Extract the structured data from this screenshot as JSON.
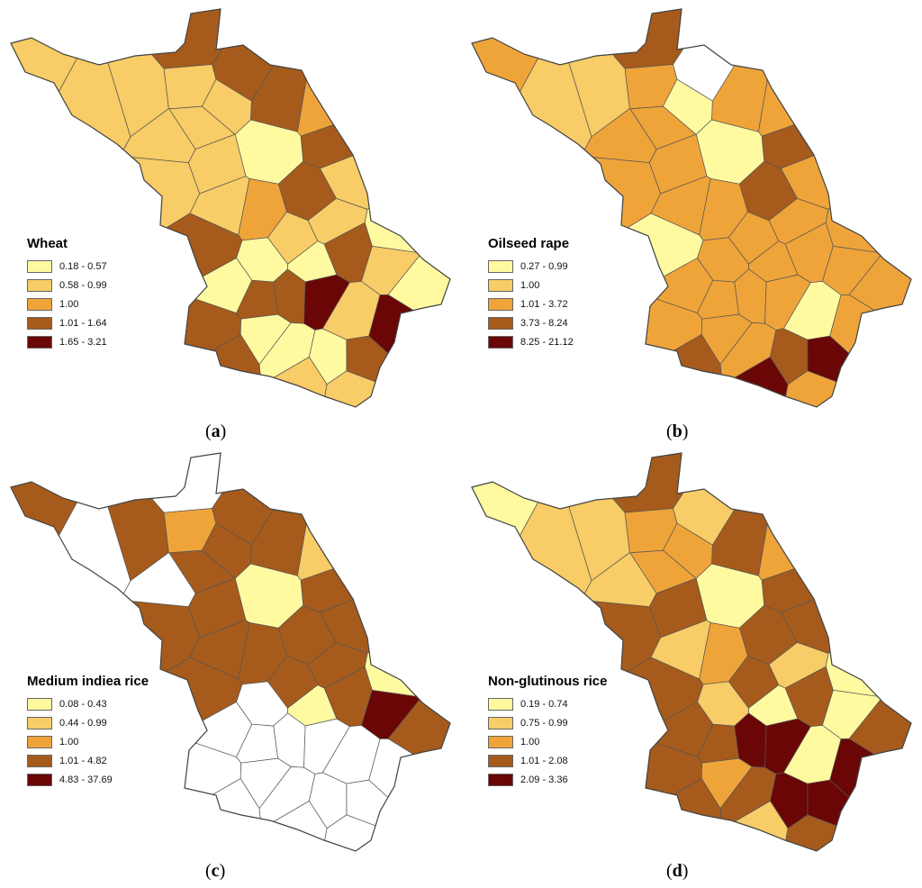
{
  "palette": {
    "c1": "#FFFAA0",
    "c2": "#F8CC66",
    "c3": "#EFA43A",
    "c4": "#A65B1C",
    "c5": "#6B0606",
    "none": "#FFFFFF"
  },
  "panels": [
    {
      "id": "a",
      "caption_prefix": "(",
      "caption_letter": "a",
      "caption_suffix": ")",
      "legend_title": "Wheat",
      "legend": [
        {
          "label": "0.18 - 0.57",
          "class": "c1"
        },
        {
          "label": "0.58 - 0.99",
          "class": "c2"
        },
        {
          "label": "1.00",
          "class": "c3"
        },
        {
          "label": "1.01 - 1.64",
          "class": "c4"
        },
        {
          "label": "1.65 - 3.21",
          "class": "c5"
        }
      ],
      "regions": [
        "c4",
        "c2",
        "c4",
        "c2",
        "c2",
        "c2",
        "c4",
        "c2",
        "c3",
        "c2",
        "c4",
        "c2",
        "c1",
        "c2",
        "c2",
        "c2",
        "c4",
        "c2",
        "c3",
        "c2",
        "c1",
        "c2",
        "c4",
        "c4",
        "c2",
        "c1",
        "c1",
        "c1",
        "c1",
        "c4",
        "c5",
        "c4",
        "c2",
        "c5",
        "c4",
        "c1",
        "c1",
        "c4",
        "c4",
        "c1",
        "c2",
        "c2"
      ]
    },
    {
      "id": "b",
      "caption_prefix": "(",
      "caption_letter": "b",
      "caption_suffix": ")",
      "legend_title": "Oilseed rape",
      "legend": [
        {
          "label": "0.27 - 0.99",
          "class": "c1"
        },
        {
          "label": "1.00",
          "class": "c2"
        },
        {
          "label": "1.01 - 3.72",
          "class": "c3"
        },
        {
          "label": "3.73 - 8.24",
          "class": "c4"
        },
        {
          "label": "8.25 - 21.12",
          "class": "c5"
        }
      ],
      "regions": [
        "c4",
        "c3",
        "none",
        "c3",
        "c2",
        "c1",
        "c3",
        "c2",
        "c3",
        "c3",
        "c4",
        "c3",
        "c1",
        "c3",
        "c3",
        "c3",
        "c4",
        "c3",
        "c3",
        "c3",
        "c3",
        "c3",
        "c1",
        "c3",
        "c3",
        "c3",
        "c3",
        "c3",
        "c3",
        "c3",
        "c3",
        "c3",
        "c1",
        "c3",
        "c3",
        "c3",
        "c3",
        "c4",
        "c5",
        "c4",
        "c5",
        "c3"
      ]
    },
    {
      "id": "c",
      "caption_prefix": "(",
      "caption_letter": "c",
      "caption_suffix": ")",
      "legend_title": "Medium indiea rice",
      "legend": [
        {
          "label": "0.08 - 0.43",
          "class": "c1"
        },
        {
          "label": "0.44 - 0.99",
          "class": "c2"
        },
        {
          "label": "1.00",
          "class": "c3"
        },
        {
          "label": "1.01 - 4.82",
          "class": "c4"
        },
        {
          "label": "4.83 - 37.69",
          "class": "c5"
        }
      ],
      "regions": [
        "none",
        "c4",
        "c4",
        "c3",
        "c4",
        "c4",
        "c4",
        "none",
        "c2",
        "c4",
        "c4",
        "none",
        "c1",
        "c4",
        "c4",
        "c4",
        "c4",
        "c4",
        "c4",
        "c4",
        "c1",
        "c4",
        "c4",
        "c4",
        "c5",
        "none",
        "c1",
        "c4",
        "none",
        "none",
        "none",
        "none",
        "none",
        "none",
        "none",
        "none",
        "none",
        "none",
        "none",
        "none",
        "none",
        "none"
      ]
    },
    {
      "id": "d",
      "caption_prefix": "(",
      "caption_letter": "d",
      "caption_suffix": ")",
      "legend_title": "Non-glutinous rice",
      "legend": [
        {
          "label": "0.19 - 0.74",
          "class": "c1"
        },
        {
          "label": "0.75 - 0.99",
          "class": "c2"
        },
        {
          "label": "1.00",
          "class": "c3"
        },
        {
          "label": "1.01 - 2.08",
          "class": "c4"
        },
        {
          "label": "2.09 - 3.36",
          "class": "c5"
        }
      ],
      "regions": [
        "c4",
        "c1",
        "c2",
        "c3",
        "c2",
        "c3",
        "c4",
        "c2",
        "c3",
        "c3",
        "c4",
        "c2",
        "c1",
        "c4",
        "c4",
        "c4",
        "c4",
        "c2",
        "c3",
        "c2",
        "c1",
        "c4",
        "c4",
        "c4",
        "c1",
        "c2",
        "c1",
        "c4",
        "c4",
        "c5",
        "c5",
        "c4",
        "c1",
        "c5",
        "c4",
        "c3",
        "c4",
        "c4",
        "c5",
        "c5",
        "c2",
        "c4"
      ]
    }
  ]
}
